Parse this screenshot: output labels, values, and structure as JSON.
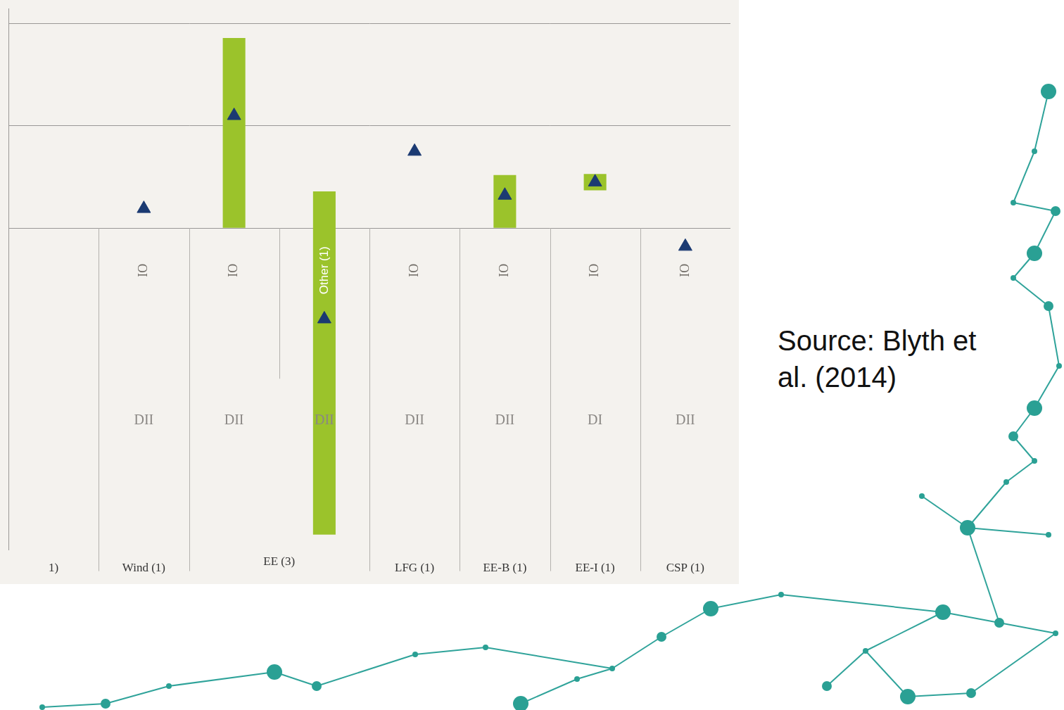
{
  "chart_data": {
    "type": "bar",
    "categories": [
      "1)",
      "Wind (1)",
      null,
      null,
      "LFG (1)",
      "EE-B (1)",
      "EE-I (1)",
      "CSP (1)"
    ],
    "category_groups": [
      {
        "label": "EE (3)",
        "members": [
          2,
          3
        ]
      }
    ],
    "upper_labels": [
      null,
      "IO",
      "IO",
      "Other (1)",
      "IO",
      "IO",
      "IO",
      "IO"
    ],
    "lower_labels": [
      null,
      "DII",
      "DII",
      "DII",
      "DII",
      "DII",
      "DI",
      "DII"
    ],
    "series": [
      {
        "type": "bar",
        "color": "#9bc32b",
        "values": [
          null,
          null,
          [
            0,
            1.86
          ],
          [
            -3.0,
            0.36
          ],
          null,
          [
            0,
            0.52
          ],
          [
            0.37,
            0.53
          ],
          null
        ]
      },
      {
        "type": "scatter",
        "marker": "triangle",
        "color": "#1b3a72",
        "values": [
          null,
          0.19,
          1.1,
          -0.89,
          0.75,
          0.32,
          0.45,
          -0.18
        ]
      }
    ],
    "ylim": [
      -3.15,
      2.15
    ],
    "yticks": [
      0,
      1,
      2
    ],
    "grid": true,
    "tick_labels": "x",
    "source": "Source: Blyth et al. (2014)"
  }
}
